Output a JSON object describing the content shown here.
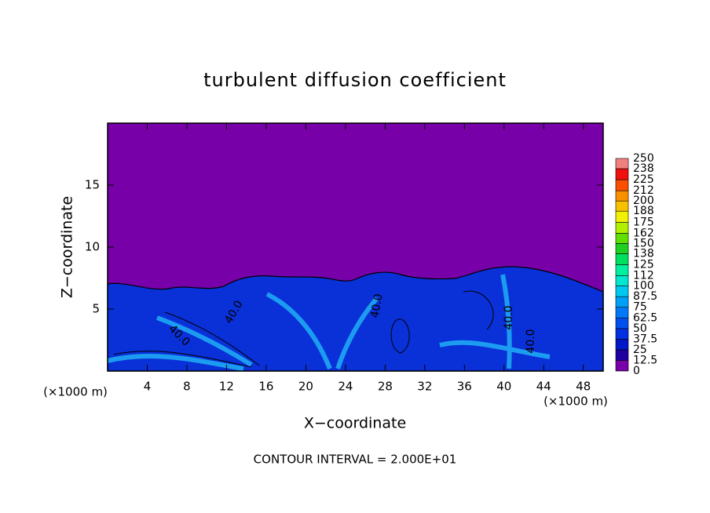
{
  "chart_data": {
    "type": "contour",
    "title": "turbulent diffusion coefficient",
    "x_label": "X−coordinate",
    "y_label": "Z−coordinate",
    "x_unit": "(×1000 m)",
    "y_unit": "(×1000 m)",
    "footer": "CONTOUR INTERVAL = 2.000E+01",
    "xlim": [
      0,
      50
    ],
    "xticks": [
      4,
      8,
      12,
      16,
      20,
      24,
      28,
      32,
      36,
      40,
      44,
      48
    ],
    "ylim": [
      0,
      20
    ],
    "yticks": [
      5,
      10,
      15
    ],
    "contour_labels": [
      "40.0",
      "40.0",
      "40.0",
      "40.0",
      "40.0"
    ],
    "colorbar": {
      "levels": [
        0,
        12.5,
        25,
        37.5,
        50,
        62.5,
        75,
        87.5,
        100,
        112,
        125,
        138,
        150,
        162,
        175,
        188,
        200,
        212,
        225,
        238,
        250
      ],
      "colors": [
        "#7700a8",
        "#2000a0",
        "#0018c8",
        "#0030e0",
        "#0050f0",
        "#0078f8",
        "#00a0f8",
        "#00c8f0",
        "#00e8d0",
        "#00f0a0",
        "#00e060",
        "#20d020",
        "#60e000",
        "#b0f000",
        "#f0f000",
        "#f8c000",
        "#f89000",
        "#f85000",
        "#f01010",
        "#f08080"
      ]
    }
  }
}
